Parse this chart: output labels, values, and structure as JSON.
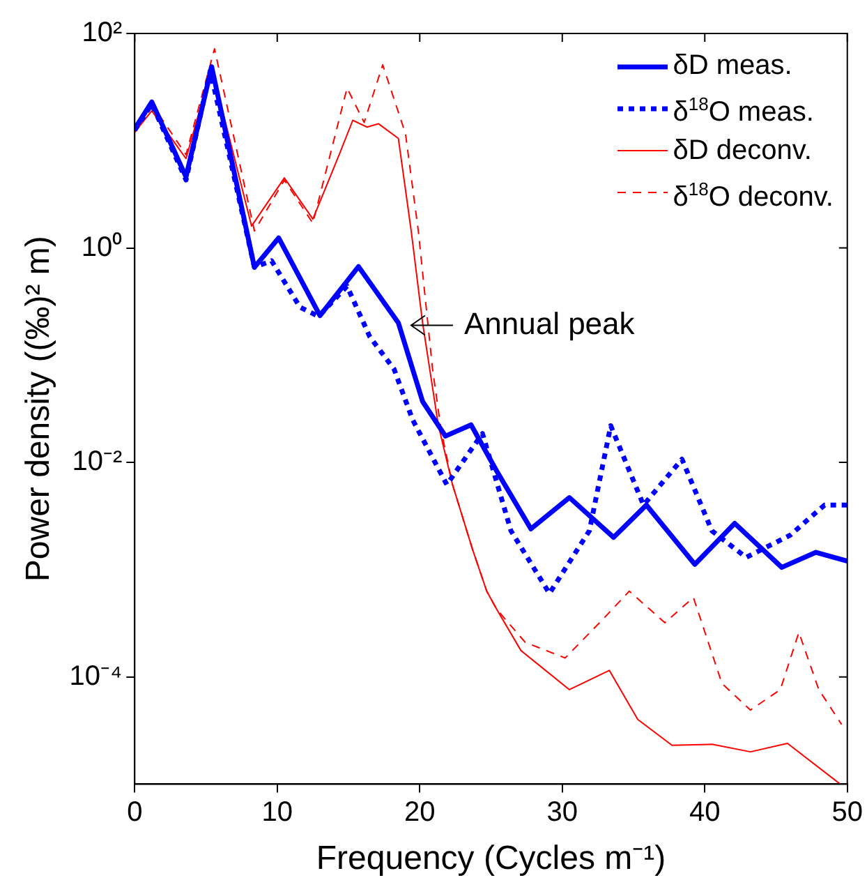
{
  "chart_data": {
    "type": "line",
    "xlabel": "Frequency (Cycles m⁻¹)",
    "ylabel": "Power density ((‰)² m)",
    "xlim": [
      0,
      50
    ],
    "xticks": [
      0,
      10,
      20,
      30,
      40,
      50
    ],
    "ylim": [
      1e-05,
      100
    ],
    "yticks": [
      {
        "value": 100,
        "label": "10²"
      },
      {
        "value": 1,
        "label": "10⁰"
      },
      {
        "value": 0.01,
        "label": "10⁻²"
      },
      {
        "value": 0.0001,
        "label": "10⁻⁴"
      }
    ],
    "log": "y",
    "grid": false,
    "legend": "top right",
    "marker": "none",
    "annotations": [
      {
        "text": "Annual peak",
        "x": 19.2,
        "y": 0.19
      }
    ],
    "series": [
      {
        "name": "δD meas.",
        "color": "#0000ff",
        "line_style": "solid",
        "x": [
          0,
          1.2,
          3.6,
          5.4,
          8.4,
          10.1,
          13.0,
          15.7,
          18.5,
          20.2,
          21.8,
          23.6,
          25.4,
          27.8,
          30.5,
          33.6,
          35.9,
          39.3,
          42.1,
          45.4,
          47.8,
          50
        ],
        "values": [
          12.9,
          23,
          4.6,
          49,
          0.66,
          1.24,
          0.234,
          0.67,
          0.2,
          0.037,
          0.0176,
          0.0224,
          0.0083,
          0.0024,
          0.0047,
          0.002,
          0.004,
          0.00112,
          0.0027,
          0.00105,
          0.00145,
          0.0012
        ]
      },
      {
        "name": "δ$^{18}$O meas.",
        "color": "#0000ff",
        "line_style": "dotted",
        "x": [
          0,
          1.2,
          3.6,
          5.3,
          8.4,
          9.6,
          11.6,
          12.9,
          14.9,
          16.5,
          18.2,
          19.5,
          21.9,
          24.4,
          26.4,
          29.1,
          31.9,
          33.4,
          35.7,
          38.4,
          40.5,
          42.9,
          46.0,
          48.4,
          50
        ],
        "values": [
          12.5,
          22,
          4.3,
          45,
          0.66,
          0.76,
          0.28,
          0.23,
          0.44,
          0.148,
          0.074,
          0.025,
          0.0062,
          0.0186,
          0.0023,
          0.0006,
          0.0023,
          0.022,
          0.004,
          0.0107,
          0.0023,
          0.0013,
          0.0021,
          0.004,
          0.004
        ]
      },
      {
        "name": "δD deconv.",
        "color": "#ff0000",
        "line_style": "solid",
        "x": [
          0,
          1.2,
          3.6,
          5.4,
          8.2,
          10.5,
          12.5,
          14.4,
          15.3,
          16.3,
          17.1,
          18.5,
          19.4,
          20.2,
          21.3,
          22.3,
          23.7,
          24.7,
          25.4,
          27.1,
          30.5,
          33.3,
          35.3,
          37.7,
          40.5,
          43.2,
          45.8,
          49.5
        ],
        "values": [
          12,
          19,
          6.8,
          48,
          1.6,
          4.5,
          1.86,
          7.7,
          15.5,
          13.4,
          14.4,
          10.5,
          1.44,
          0.2,
          0.0224,
          0.0062,
          0.00155,
          0.00063,
          0.000427,
          0.000176,
          7.6e-05,
          0.000115,
          4e-05,
          2.3e-05,
          2.35e-05,
          2e-05,
          2.4e-05,
          1e-05
        ]
      },
      {
        "name": "δ$^{18}$O deconv.",
        "color": "#ff0000",
        "line_style": "dashed",
        "x": [
          0,
          1.2,
          3.6,
          5.6,
          8.4,
          10.5,
          12.5,
          14.9,
          16.1,
          17.4,
          19.0,
          19.9,
          20.9,
          21.5,
          22.3,
          23.7,
          24.7,
          25.4,
          27.4,
          30.2,
          32.9,
          34.7,
          37.2,
          39.2,
          41.2,
          43.2,
          45.3,
          46.6,
          48.0,
          49.6
        ],
        "values": [
          12,
          22,
          7.4,
          72,
          1.44,
          4.3,
          1.7,
          31,
          14.8,
          51,
          11.6,
          1.44,
          0.074,
          0.02,
          0.0062,
          0.00155,
          0.00063,
          0.000427,
          0.00021,
          0.00015,
          0.00035,
          0.00063,
          0.00032,
          0.00055,
          8.7e-05,
          4.9e-05,
          7.6e-05,
          0.00026,
          7.6e-05,
          3.6e-05
        ]
      }
    ]
  }
}
